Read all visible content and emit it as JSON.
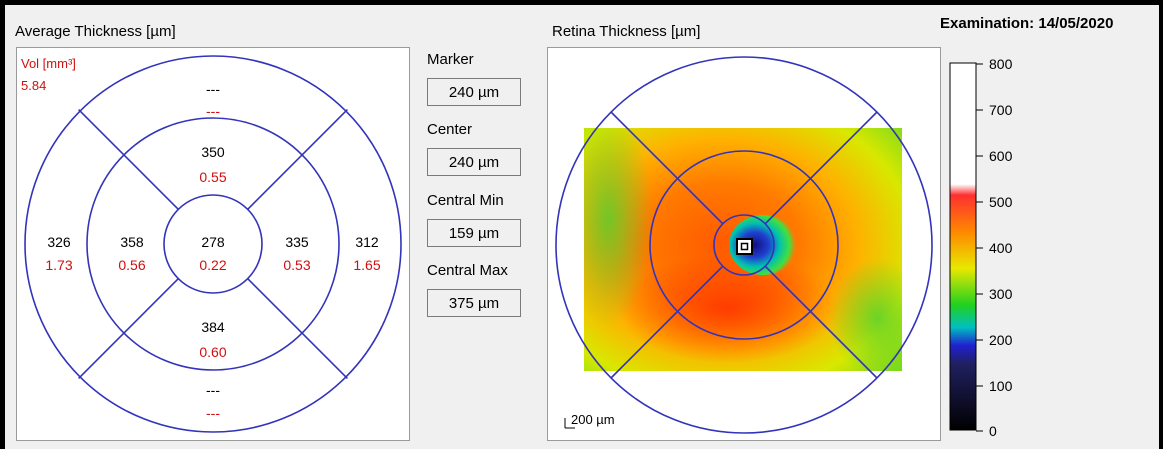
{
  "left_panel": {
    "title": "Average Thickness [µm]",
    "vol_label": "Vol [mm³]",
    "vol_value": "5.84",
    "sectors": {
      "outer_top": {
        "thickness": "---",
        "volume": "---"
      },
      "inner_top": {
        "thickness": "350",
        "volume": "0.55"
      },
      "outer_left": {
        "thickness": "326",
        "volume": "1.73"
      },
      "inner_left": {
        "thickness": "358",
        "volume": "0.56"
      },
      "center": {
        "thickness": "278",
        "volume": "0.22"
      },
      "inner_right": {
        "thickness": "335",
        "volume": "0.53"
      },
      "outer_right": {
        "thickness": "312",
        "volume": "1.65"
      },
      "inner_bottom": {
        "thickness": "384",
        "volume": "0.60"
      },
      "outer_bottom": {
        "thickness": "---",
        "volume": "---"
      }
    }
  },
  "middle_panel": {
    "marker": {
      "label": "Marker",
      "value": "240 µm"
    },
    "center": {
      "label": "Center",
      "value": "240 µm"
    },
    "central_min": {
      "label": "Central Min",
      "value": "159 µm"
    },
    "central_max": {
      "label": "Central Max",
      "value": "375 µm"
    }
  },
  "right_panel": {
    "title": "Retina Thickness [µm]",
    "scale_bar_label": "200 µm"
  },
  "examination": "Examination: 14/05/2020",
  "color_scale": {
    "ticks": [
      "800",
      "700",
      "600",
      "500",
      "400",
      "300",
      "200",
      "100",
      "0"
    ]
  },
  "colors": {
    "grid": "#3333bb",
    "volume_text": "#d01010"
  }
}
